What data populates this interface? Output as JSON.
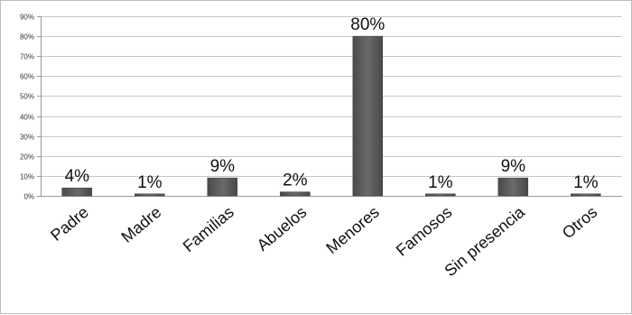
{
  "chart_data": {
    "type": "bar",
    "categories": [
      "Padre",
      "Madre",
      "Familias",
      "Abuelos",
      "Menores",
      "Famosos",
      "Sin presencia",
      "Otros"
    ],
    "values": [
      4,
      1,
      9,
      2,
      80,
      1,
      9,
      1
    ],
    "data_labels": [
      "4%",
      "1%",
      "9%",
      "2%",
      "80%",
      "1%",
      "9%",
      "1%"
    ],
    "title": "",
    "xlabel": "",
    "ylabel": "",
    "ylim": [
      0,
      90
    ],
    "y_ticks": [
      "0%",
      "10%",
      "20%",
      "30%",
      "40%",
      "50%",
      "60%",
      "70%",
      "80%",
      "90%"
    ],
    "grid": true,
    "legend": "none",
    "colors": {
      "bar": "#5a5a5a",
      "bar_dark": "#3f3f3f",
      "grid": "#c8c8c8",
      "axis": "#9a9a9a"
    }
  }
}
